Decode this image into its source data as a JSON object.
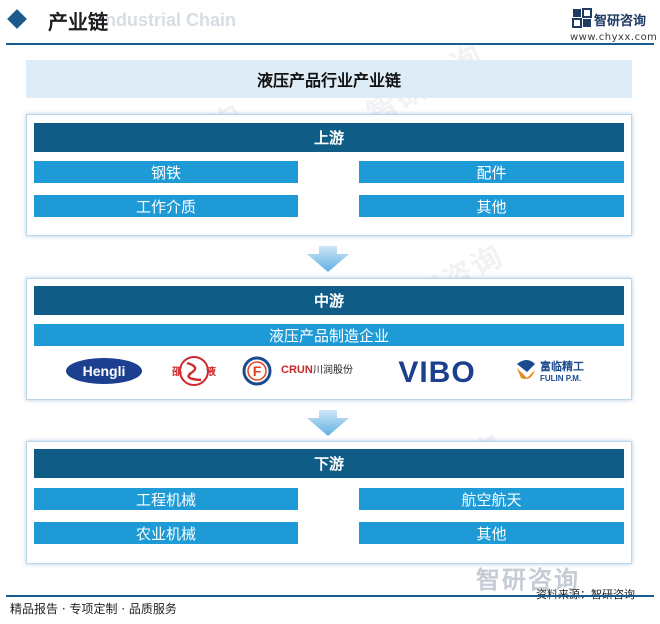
{
  "header": {
    "title": "产业链",
    "ghost_text": "Industrial Chain",
    "brand": "智研咨询",
    "site": "www.chyxx.com"
  },
  "banner": "液压产品行业产业链",
  "upstream": {
    "title": "上游",
    "items": [
      "钢铁",
      "配件",
      "工作介质",
      "其他"
    ]
  },
  "midstream": {
    "title": "中游",
    "item": "液压产品制造企业",
    "logos": [
      {
        "name": "hengli-logo",
        "text": "Hengli"
      },
      {
        "name": "shaoye-logo",
        "text": "邵液"
      },
      {
        "name": "f-logo",
        "text": "F"
      },
      {
        "name": "chuanrun-logo",
        "text": "川润股份",
        "sub": "CRUN"
      },
      {
        "name": "vibo-logo",
        "text": "VIBO"
      },
      {
        "name": "fulin-logo",
        "text": "富临精工",
        "sub": "FULIN P.M."
      }
    ]
  },
  "downstream": {
    "title": "下游",
    "items": [
      "工程机械",
      "航空航天",
      "农业机械",
      "其他"
    ]
  },
  "footer": {
    "left": "精品报告 · 专项定制 · 品质服务",
    "source": "资料来源：智研咨询",
    "watermark": "智研咨询"
  },
  "colors": {
    "dark_bar": "#0f5c86",
    "item_bar": "#1e9bd7",
    "banner_bg": "#deecf7",
    "accent": "#1a5a8c"
  }
}
